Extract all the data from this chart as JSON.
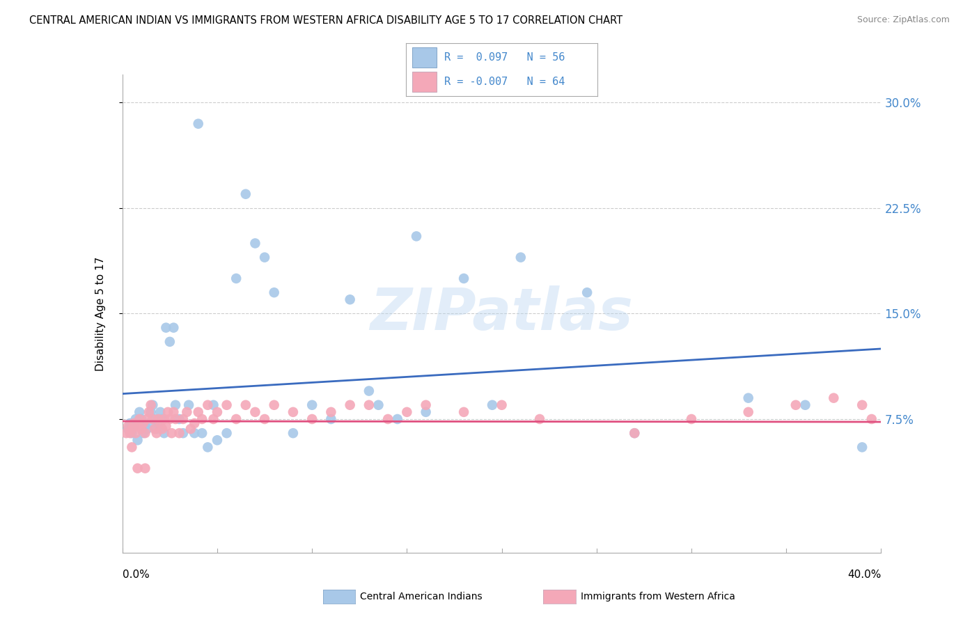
{
  "title": "CENTRAL AMERICAN INDIAN VS IMMIGRANTS FROM WESTERN AFRICA DISABILITY AGE 5 TO 17 CORRELATION CHART",
  "source": "Source: ZipAtlas.com",
  "ylabel": "Disability Age 5 to 17",
  "xlim": [
    0.0,
    0.4
  ],
  "ylim": [
    -0.02,
    0.32
  ],
  "ytick_vals": [
    0.075,
    0.15,
    0.225,
    0.3
  ],
  "ytick_labels": [
    "7.5%",
    "15.0%",
    "22.5%",
    "30.0%"
  ],
  "color_blue": "#a8c8e8",
  "color_pink": "#f4a8b8",
  "line_color_blue": "#3a6bbf",
  "line_color_pink": "#e05080",
  "tick_label_color": "#4488cc",
  "background_color": "#ffffff",
  "watermark": "ZIPatlas",
  "blue_line_x": [
    0.0,
    0.4
  ],
  "blue_line_y": [
    0.093,
    0.125
  ],
  "pink_line_x": [
    0.0,
    0.4
  ],
  "pink_line_y": [
    0.0735,
    0.073
  ],
  "legend_r1": "R =  0.097",
  "legend_n1": "N = 56",
  "legend_r2": "R = -0.007",
  "legend_n2": "N = 64",
  "legend_text_color": "#4488cc",
  "blue_scatter_x": [
    0.003,
    0.004,
    0.005,
    0.006,
    0.007,
    0.008,
    0.009,
    0.01,
    0.011,
    0.012,
    0.013,
    0.014,
    0.015,
    0.016,
    0.017,
    0.018,
    0.019,
    0.02,
    0.021,
    0.022,
    0.023,
    0.025,
    0.027,
    0.028,
    0.03,
    0.032,
    0.035,
    0.038,
    0.04,
    0.042,
    0.045,
    0.048,
    0.05,
    0.055,
    0.06,
    0.065,
    0.07,
    0.075,
    0.08,
    0.09,
    0.1,
    0.11,
    0.12,
    0.13,
    0.135,
    0.145,
    0.155,
    0.16,
    0.18,
    0.195,
    0.21,
    0.245,
    0.27,
    0.33,
    0.36,
    0.39
  ],
  "blue_scatter_y": [
    0.068,
    0.072,
    0.065,
    0.07,
    0.075,
    0.06,
    0.08,
    0.075,
    0.065,
    0.07,
    0.068,
    0.072,
    0.08,
    0.085,
    0.075,
    0.068,
    0.072,
    0.08,
    0.075,
    0.065,
    0.14,
    0.13,
    0.14,
    0.085,
    0.075,
    0.065,
    0.085,
    0.065,
    0.285,
    0.065,
    0.055,
    0.085,
    0.06,
    0.065,
    0.175,
    0.235,
    0.2,
    0.19,
    0.165,
    0.065,
    0.085,
    0.075,
    0.16,
    0.095,
    0.085,
    0.075,
    0.205,
    0.08,
    0.175,
    0.085,
    0.19,
    0.165,
    0.065,
    0.09,
    0.085,
    0.055
  ],
  "pink_scatter_x": [
    0.002,
    0.003,
    0.004,
    0.005,
    0.006,
    0.007,
    0.008,
    0.009,
    0.01,
    0.011,
    0.012,
    0.013,
    0.014,
    0.015,
    0.016,
    0.017,
    0.018,
    0.019,
    0.02,
    0.021,
    0.022,
    0.023,
    0.024,
    0.025,
    0.026,
    0.027,
    0.028,
    0.03,
    0.032,
    0.034,
    0.036,
    0.038,
    0.04,
    0.042,
    0.045,
    0.048,
    0.05,
    0.055,
    0.06,
    0.065,
    0.07,
    0.075,
    0.08,
    0.09,
    0.1,
    0.11,
    0.12,
    0.13,
    0.14,
    0.15,
    0.16,
    0.18,
    0.2,
    0.22,
    0.27,
    0.3,
    0.33,
    0.355,
    0.375,
    0.39,
    0.395,
    0.005,
    0.008,
    0.012
  ],
  "pink_scatter_y": [
    0.065,
    0.07,
    0.065,
    0.068,
    0.072,
    0.065,
    0.07,
    0.075,
    0.068,
    0.072,
    0.065,
    0.075,
    0.08,
    0.085,
    0.075,
    0.068,
    0.065,
    0.075,
    0.072,
    0.068,
    0.075,
    0.07,
    0.08,
    0.075,
    0.065,
    0.08,
    0.075,
    0.065,
    0.075,
    0.08,
    0.068,
    0.072,
    0.08,
    0.075,
    0.085,
    0.075,
    0.08,
    0.085,
    0.075,
    0.085,
    0.08,
    0.075,
    0.085,
    0.08,
    0.075,
    0.08,
    0.085,
    0.085,
    0.075,
    0.08,
    0.085,
    0.08,
    0.085,
    0.075,
    0.065,
    0.075,
    0.08,
    0.085,
    0.09,
    0.085,
    0.075,
    0.055,
    0.04,
    0.04
  ]
}
